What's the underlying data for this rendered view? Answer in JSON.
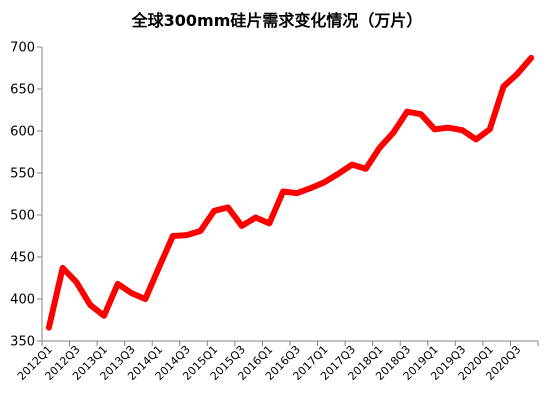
{
  "chart_data": {
    "type": "line",
    "title": "全球300mm硅片需求变化情况（万片）",
    "xlabel": "",
    "ylabel": "",
    "ylim": [
      350,
      700
    ],
    "yticks": [
      350,
      400,
      450,
      500,
      550,
      600,
      650,
      700
    ],
    "grid": false,
    "legend": "none",
    "x": [
      "2012Q1",
      "2012Q2",
      "2012Q3",
      "2012Q4",
      "2013Q1",
      "2013Q2",
      "2013Q3",
      "2013Q4",
      "2014Q1",
      "2014Q2",
      "2014Q3",
      "2014Q4",
      "2015Q1",
      "2015Q2",
      "2015Q3",
      "2015Q4",
      "2016Q1",
      "2016Q2",
      "2016Q3",
      "2016Q4",
      "2017Q1",
      "2017Q2",
      "2017Q3",
      "2017Q4",
      "2018Q1",
      "2018Q2",
      "2018Q3",
      "2018Q4",
      "2019Q1",
      "2019Q2",
      "2019Q3",
      "2019Q4",
      "2020Q1",
      "2020Q2",
      "2020Q3",
      "2020Q4"
    ],
    "x_tick_labels": [
      "2012Q1",
      "2012Q3",
      "2013Q1",
      "2013Q3",
      "2014Q1",
      "2014Q3",
      "2015Q1",
      "2015Q3",
      "2016Q1",
      "2016Q3",
      "2017Q1",
      "2017Q3",
      "2018Q1",
      "2018Q3",
      "2019Q1",
      "2019Q3",
      "2020Q1",
      "2020Q3"
    ],
    "series": [
      {
        "color": "#ff0000",
        "values": [
          366,
          437,
          420,
          393,
          380,
          418,
          407,
          400,
          438,
          475,
          476,
          481,
          505,
          509,
          487,
          497,
          490,
          528,
          526,
          532,
          539,
          549,
          560,
          555,
          580,
          598,
          623,
          620,
          602,
          604,
          601,
          590,
          602,
          653,
          668,
          687
        ]
      }
    ]
  }
}
